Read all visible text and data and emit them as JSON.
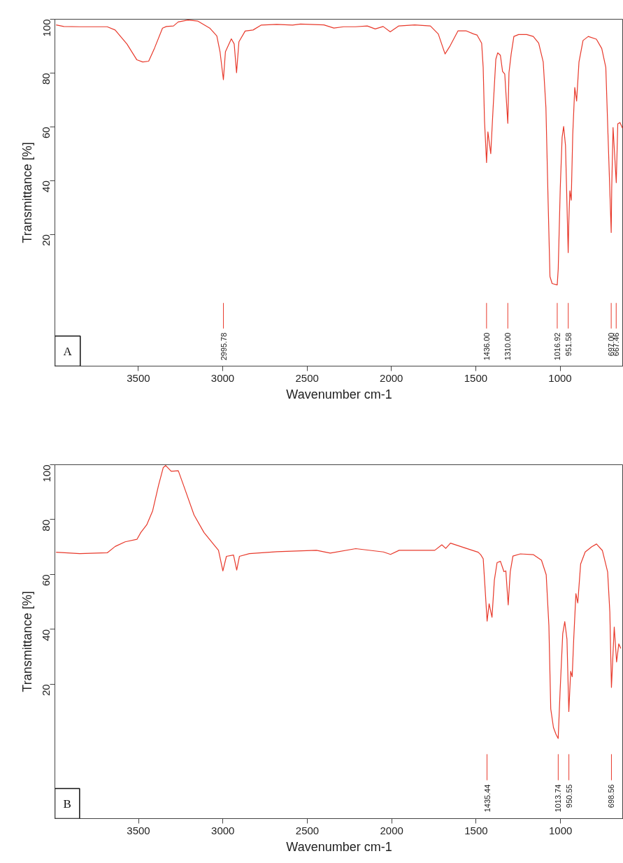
{
  "chart_data": [
    {
      "type": "line",
      "xlabel": "Wavenumber cm-1",
      "ylabel": "Transmittance [%]",
      "xlim": [
        3995,
        625
      ],
      "ylim": [
        -29,
        100
      ],
      "xticks": [
        3500,
        3000,
        2500,
        2000,
        1500,
        1000
      ],
      "yticks": [
        20,
        40,
        60,
        80,
        100
      ],
      "grid": false,
      "line_style": "solid",
      "marker": "none",
      "series": [
        {
          "color": "#e8392b",
          "x": [
            3988,
            3942,
            3848,
            3685,
            3638,
            3568,
            3509,
            3474,
            3439,
            3404,
            3357,
            3334,
            3292,
            3264,
            3206,
            3147,
            3077,
            3035,
            3016,
            2996,
            2984,
            2949,
            2932,
            2918,
            2904,
            2867,
            2820,
            2773,
            2680,
            2586,
            2539,
            2400,
            2341,
            2283,
            2213,
            2143,
            2096,
            2049,
            2007,
            1956,
            1862,
            1769,
            1722,
            1682,
            1652,
            1605,
            1558,
            1512,
            1492,
            1465,
            1456,
            1448,
            1436,
            1428,
            1411,
            1397,
            1381,
            1370,
            1354,
            1341,
            1328,
            1310,
            1303,
            1290,
            1274,
            1246,
            1198,
            1159,
            1127,
            1100,
            1084,
            1071,
            1060,
            1047,
            1017,
            1011,
            999,
            988,
            979,
            968,
            952,
            948,
            942,
            934,
            925,
            913,
            902,
            888,
            864,
            833,
            785,
            753,
            729,
            716,
            697,
            694,
            686,
            667,
            658,
            645,
            630
          ],
          "values": [
            97.9,
            97.3,
            97.2,
            97.2,
            96,
            90.8,
            84.9,
            84.1,
            84.4,
            89.3,
            96.7,
            97.3,
            97.5,
            99,
            99.7,
            99.3,
            96.7,
            93.8,
            87.9,
            77.5,
            87.9,
            92.7,
            90.8,
            80.1,
            91.6,
            95.6,
            96,
            97.8,
            98.1,
            97.8,
            98.2,
            97.9,
            96.7,
            97.2,
            97.2,
            97.5,
            96.4,
            97.3,
            95.3,
            97.5,
            97.9,
            97.5,
            94.5,
            87.1,
            90.1,
            95.7,
            95.7,
            94.5,
            94.1,
            91.1,
            82.1,
            62.1,
            46.7,
            58.1,
            50,
            67.1,
            85.1,
            87.5,
            86.6,
            80.6,
            79.6,
            61.3,
            80.1,
            87.1,
            93.6,
            94.3,
            94.3,
            93.6,
            91.1,
            84.1,
            67.1,
            32.2,
            4.3,
            1.7,
            1.2,
            7.2,
            37.2,
            56.1,
            60.1,
            53.1,
            13.2,
            25.2,
            36.2,
            32.7,
            57.1,
            74.6,
            69.6,
            84.1,
            92.1,
            93.6,
            92.6,
            89.1,
            82.1,
            57.1,
            20.7,
            37.2,
            59.7,
            39.2,
            61.1,
            61.6,
            59.5
          ]
        }
      ],
      "ref_lines": [
        {
          "axis": "x",
          "value": 2995.78,
          "label": "2995.78"
        },
        {
          "axis": "x",
          "value": 1436.0,
          "label": "1436.00"
        },
        {
          "axis": "x",
          "value": 1310.0,
          "label": "1310.00"
        },
        {
          "axis": "x",
          "value": 1016.92,
          "label": "1016.92"
        },
        {
          "axis": "x",
          "value": 951.58,
          "label": "951.58"
        },
        {
          "axis": "x",
          "value": 697.0,
          "label": "697.00"
        },
        {
          "axis": "x",
          "value": 667.46,
          "label": "667.46"
        }
      ],
      "annotations": [
        "A"
      ]
    },
    {
      "type": "line",
      "xlabel": "Wavenumber cm-1",
      "ylabel": "Transmittance [%]",
      "xlim": [
        3995,
        628
      ],
      "ylim": [
        -29,
        100
      ],
      "xticks": [
        3500,
        3000,
        2500,
        2000,
        1500,
        1000
      ],
      "yticks": [
        20,
        40,
        60,
        80,
        100
      ],
      "grid": false,
      "line_style": "solid",
      "marker": "none",
      "series": [
        {
          "color": "#e8392b",
          "x": [
            3988,
            3848,
            3685,
            3638,
            3579,
            3509,
            3486,
            3451,
            3416,
            3381,
            3353,
            3339,
            3306,
            3264,
            3229,
            3171,
            3112,
            3054,
            3026,
            3000,
            2979,
            2937,
            2918,
            2902,
            2843,
            2680,
            2446,
            2364,
            2213,
            2049,
            2007,
            1956,
            1745,
            1703,
            1680,
            1652,
            1558,
            1488,
            1473,
            1458,
            1450,
            1435,
            1423,
            1406,
            1392,
            1376,
            1356,
            1335,
            1324,
            1310,
            1298,
            1282,
            1238,
            1160,
            1113,
            1085,
            1069,
            1058,
            1042,
            1027,
            1014,
            1003,
            987,
            975,
            962,
            951,
            940,
            931,
            922,
            909,
            898,
            881,
            854,
            815,
            787,
            752,
            721,
            708,
            698.56,
            682,
            668,
            655,
            643
          ],
          "values": [
            68.1,
            67.6,
            67.9,
            70.2,
            71.9,
            72.8,
            75.3,
            78.1,
            83.2,
            92.5,
            99,
            99.7,
            97.6,
            97.8,
            91.8,
            81.7,
            75.3,
            70.9,
            68.8,
            61.3,
            66.6,
            67.1,
            61.6,
            66.6,
            67.6,
            68.3,
            68.8,
            67.8,
            69.4,
            68.2,
            67.3,
            68.8,
            68.8,
            70.8,
            69.5,
            71.4,
            69.5,
            68.1,
            67.2,
            65.7,
            57.9,
            43.0,
            49.3,
            44.4,
            57.9,
            64.3,
            64.8,
            61.0,
            61.3,
            48.9,
            60.9,
            66.7,
            67.5,
            67.2,
            65.2,
            59.9,
            41.3,
            11.0,
            4.2,
            1.7,
            0.2,
            16.9,
            38.4,
            42.8,
            36.4,
            10.0,
            24.7,
            22.7,
            36.4,
            53.0,
            49.6,
            63.8,
            68.2,
            70.1,
            71.1,
            68.7,
            60.9,
            46.2,
            18.8,
            40.8,
            28.1,
            34.7,
            33.0
          ]
        }
      ],
      "ref_lines": [
        {
          "axis": "x",
          "value": 1435.44,
          "label": "1435.44"
        },
        {
          "axis": "x",
          "value": 1013.74,
          "label": "1013.74"
        },
        {
          "axis": "x",
          "value": 950.55,
          "label": "950.55"
        },
        {
          "axis": "x",
          "value": 698.56,
          "label": "698.56"
        }
      ],
      "annotations": [
        "B"
      ]
    }
  ]
}
